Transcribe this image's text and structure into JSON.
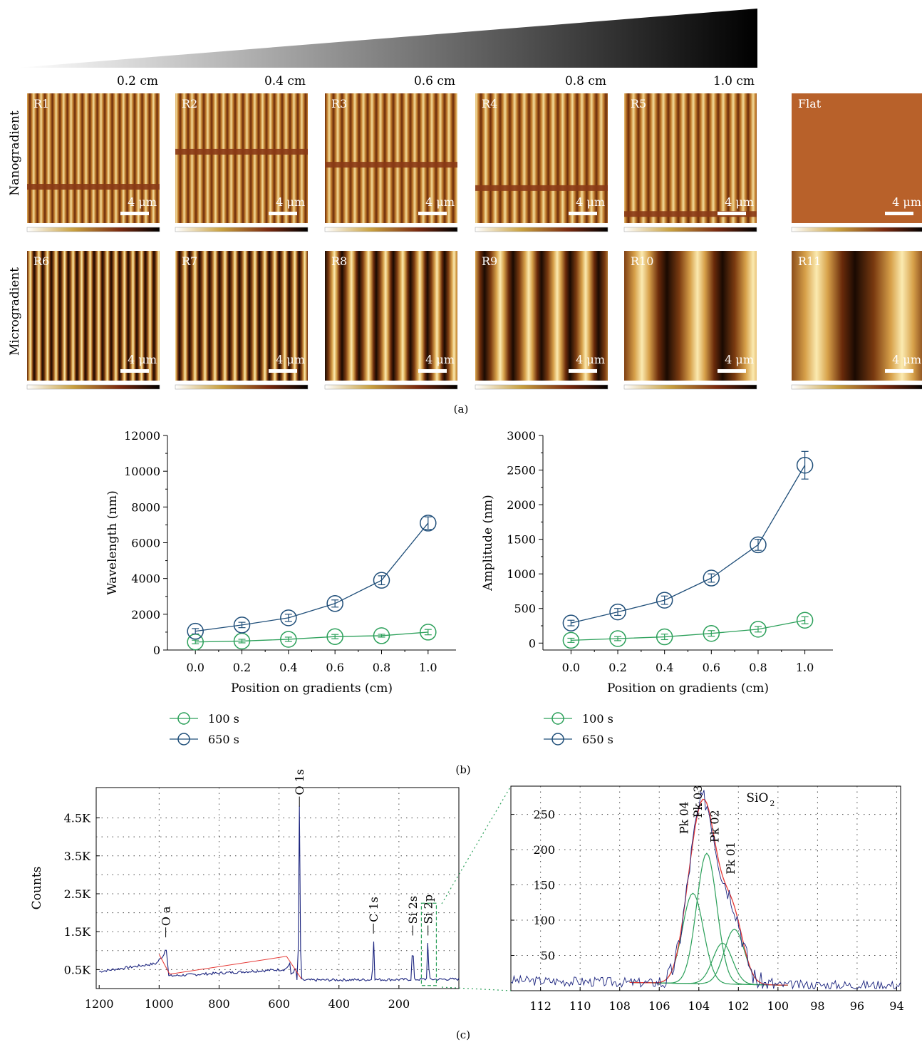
{
  "panel_a": {
    "label": "(a)",
    "positions": [
      "0.2 cm",
      "0.4 cm",
      "0.6 cm",
      "0.8 cm",
      "1.0 cm"
    ],
    "row_labels": [
      "Nanogradient",
      "Microgradient"
    ],
    "scale_bar": "4 μm",
    "top_row": [
      {
        "label": "R1",
        "stripe_period": 10.5,
        "band_frac": 0.72
      },
      {
        "label": "R2",
        "stripe_period": 11,
        "band_frac": 0.45
      },
      {
        "label": "R3",
        "stripe_period": 12,
        "band_frac": 0.55
      },
      {
        "label": "R4",
        "stripe_period": 13.5,
        "band_frac": 0.73
      },
      {
        "label": "R5",
        "stripe_period": 14,
        "band_frac": 0.93
      },
      {
        "label": "Flat",
        "stripe_period": 0,
        "band_frac": 0
      }
    ],
    "bottom_row": [
      {
        "label": "R6",
        "stripe_period": 12
      },
      {
        "label": "R7",
        "stripe_period": 14
      },
      {
        "label": "R8",
        "stripe_period": 24
      },
      {
        "label": "R9",
        "stripe_period": 40
      },
      {
        "label": "R10",
        "stripe_period": 78
      },
      {
        "label": "R11",
        "stripe_period": 120
      }
    ]
  },
  "panel_b": {
    "label": "(b)",
    "legend": [
      "100 s",
      "650 s"
    ],
    "colors": {
      "s100": "#2ca05a",
      "s650": "#1f4e79"
    }
  },
  "panel_c": {
    "label": "(c)",
    "colors": {
      "spectrum": "#1a237e",
      "envelope": "#e53935",
      "peaks": "#2ca05a",
      "zoom": "#2ca05a"
    }
  },
  "chart_data": [
    {
      "type": "line",
      "xlabel": "Position on gradients (cm)",
      "ylabel": "Wavelength (nm)",
      "xlim": [
        -0.12,
        1.12
      ],
      "ylim": [
        0,
        12000
      ],
      "x": [
        0.0,
        0.2,
        0.4,
        0.6,
        0.8,
        1.0
      ],
      "xticks": [
        "0.0",
        "0.2",
        "0.4",
        "0.6",
        "0.8",
        "1.0"
      ],
      "yticks": [
        "0",
        "2000",
        "4000",
        "6000",
        "8000",
        "10000",
        "12000"
      ],
      "series": [
        {
          "name": "100 s",
          "values": [
            450,
            500,
            600,
            750,
            800,
            1000
          ],
          "errors": [
            100,
            100,
            120,
            120,
            80,
            150
          ]
        },
        {
          "name": "650 s",
          "values": [
            1050,
            1400,
            1800,
            2600,
            3900,
            7100
          ],
          "errors": [
            150,
            150,
            200,
            200,
            250,
            350
          ]
        }
      ]
    },
    {
      "type": "line",
      "xlabel": "Position on gradients (cm)",
      "ylabel": "Amplitude (nm)",
      "xlim": [
        -0.12,
        1.12
      ],
      "ylim": [
        -100,
        3000
      ],
      "x": [
        0.0,
        0.2,
        0.4,
        0.6,
        0.8,
        1.0
      ],
      "xticks": [
        "0.0",
        "0.2",
        "0.4",
        "0.6",
        "0.8",
        "1.0"
      ],
      "yticks": [
        "0",
        "500",
        "1000",
        "1500",
        "2000",
        "2500",
        "3000"
      ],
      "series": [
        {
          "name": "100 s",
          "values": [
            40,
            65,
            90,
            140,
            200,
            330
          ],
          "errors": [
            30,
            30,
            40,
            40,
            40,
            50
          ]
        },
        {
          "name": "650 s",
          "values": [
            290,
            450,
            620,
            940,
            1420,
            2570
          ],
          "errors": [
            40,
            50,
            60,
            60,
            80,
            200
          ]
        }
      ]
    },
    {
      "type": "line",
      "ylabel": "Counts",
      "xlim": [
        1210,
        0
      ],
      "ylim": [
        0,
        5300
      ],
      "xticks": [
        "1200",
        "1000",
        "800",
        "600",
        "400",
        "200"
      ],
      "yticks": [
        "0.5K",
        "1.5K",
        "2.5K",
        "3.5K",
        "4.5K"
      ],
      "peaks": [
        {
          "label": "O a",
          "x": 978,
          "y": 1350
        },
        {
          "label": "O 1s",
          "x": 532,
          "y": 4800
        },
        {
          "label": "C 1s",
          "x": 285,
          "y": 1450
        },
        {
          "label": "Si 2s",
          "x": 154,
          "y": 1400
        },
        {
          "label": "Si 2p",
          "x": 103,
          "y": 1400
        }
      ]
    },
    {
      "type": "line",
      "xlim": [
        113.5,
        93.8
      ],
      "ylim": [
        0,
        290
      ],
      "xticks": [
        "112",
        "110",
        "108",
        "106",
        "104",
        "102",
        "100",
        "98",
        "96",
        "94"
      ],
      "yticks": [
        "50",
        "100",
        "150",
        "200",
        "250"
      ],
      "annotation": "SiO2",
      "components": [
        {
          "label": "Pk 04",
          "center": 104.3,
          "height": 128,
          "width": 0.75
        },
        {
          "label": "Pk 03",
          "center": 103.6,
          "height": 185,
          "width": 0.72
        },
        {
          "label": "Pk 02",
          "center": 102.8,
          "height": 58,
          "width": 0.7
        },
        {
          "label": "Pk 01",
          "center": 102.2,
          "height": 78,
          "width": 0.72
        }
      ]
    }
  ]
}
